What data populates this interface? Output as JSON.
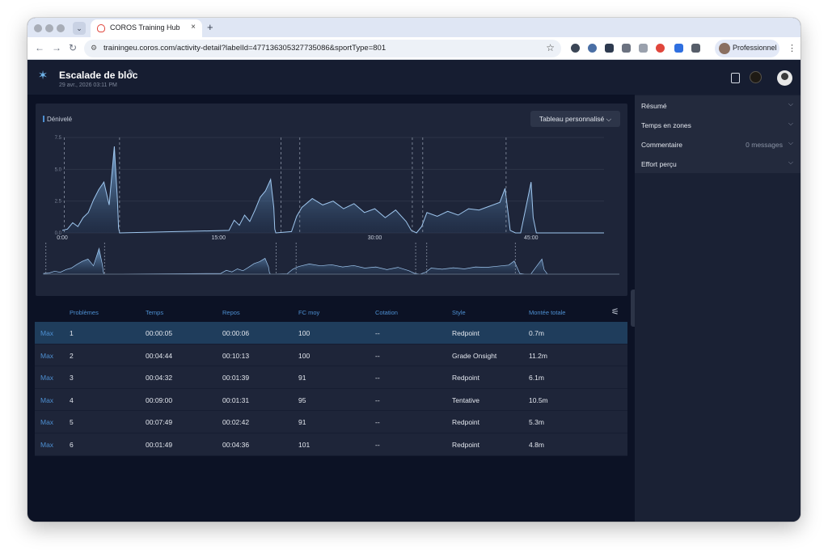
{
  "browser": {
    "tab_title": "COROS Training Hub",
    "url": "trainingeu.coros.com/activity-detail?labelId=477136305327735086&sportType=801",
    "profile_label": "Professionnel",
    "new_tab_glyph": "+",
    "close_tab_glyph": "×"
  },
  "header": {
    "title": "Escalade de bloc",
    "date": "29 avr., 2026 03:11 PM"
  },
  "chart": {
    "metric_label": "Dénivelé",
    "table_button_label": "Tableau personnalisé ⌵"
  },
  "chart_data": {
    "type": "area",
    "y_ticks": [
      "7.5",
      "5.0",
      "2.5",
      "0.0"
    ],
    "x_ticks": [
      "0:00",
      "15:00",
      "30:00",
      "45:00"
    ],
    "ylim": [
      0,
      7.5
    ],
    "xlim": [
      0,
      52
    ],
    "x": [
      0,
      0.5,
      1,
      1.5,
      2,
      2.5,
      3,
      3.5,
      4,
      4.5,
      5,
      5.3,
      5.4,
      5.5,
      16,
      16.5,
      17,
      17.5,
      18,
      18.5,
      19,
      19.5,
      20,
      20.3,
      20.4,
      20.5,
      22,
      22.5,
      23,
      24,
      25,
      26,
      27,
      28,
      29,
      30,
      31,
      32,
      33,
      33.5,
      34,
      34.5,
      35,
      36,
      37,
      38,
      39,
      40,
      41,
      42,
      42.5,
      43,
      43.5,
      44,
      44.5,
      45,
      45.2,
      45.5,
      46,
      52
    ],
    "y": [
      0.2,
      0.3,
      0.8,
      0.5,
      1.2,
      1.6,
      2.6,
      3.4,
      4.0,
      2.2,
      6.8,
      2.5,
      0.4,
      0.0,
      0.2,
      1.0,
      0.6,
      1.4,
      0.9,
      1.8,
      2.8,
      3.3,
      4.2,
      2.0,
      0.3,
      0.0,
      0.1,
      1.3,
      2.0,
      2.7,
      2.2,
      2.5,
      1.9,
      2.3,
      1.6,
      1.9,
      1.2,
      1.8,
      0.9,
      0.2,
      0.0,
      0.5,
      1.6,
      1.3,
      1.7,
      1.4,
      1.9,
      1.8,
      2.1,
      2.4,
      3.5,
      0.2,
      0.0,
      0.0,
      2.0,
      4.0,
      1.2,
      0.0,
      0.0,
      0.0
    ],
    "segment_markers": [
      0.2,
      5.5,
      21.0,
      22.8,
      33.6,
      34.6,
      42.6
    ],
    "grid": true,
    "legend": "none"
  },
  "table": {
    "columns": [
      "Problèmes",
      "Temps",
      "Repos",
      "FC moy",
      "Cotation",
      "Style",
      "Montée totale"
    ],
    "rows": [
      {
        "max": "Max",
        "num": "1",
        "temps": "00:00:05",
        "repos": "00:00:06",
        "fc": "100",
        "cot": "--",
        "style": "Redpoint",
        "montee": "0.7m"
      },
      {
        "max": "Max",
        "num": "2",
        "temps": "00:04:44",
        "repos": "00:10:13",
        "fc": "100",
        "cot": "--",
        "style": "Grade Onsight",
        "montee": "11.2m"
      },
      {
        "max": "Max",
        "num": "3",
        "temps": "00:04:32",
        "repos": "00:01:39",
        "fc": "91",
        "cot": "--",
        "style": "Redpoint",
        "montee": "6.1m"
      },
      {
        "max": "Max",
        "num": "4",
        "temps": "00:09:00",
        "repos": "00:01:31",
        "fc": "95",
        "cot": "--",
        "style": "Tentative",
        "montee": "10.5m"
      },
      {
        "max": "Max",
        "num": "5",
        "temps": "00:07:49",
        "repos": "00:02:42",
        "fc": "91",
        "cot": "--",
        "style": "Redpoint",
        "montee": "5.3m"
      },
      {
        "max": "Max",
        "num": "6",
        "temps": "00:01:49",
        "repos": "00:04:36",
        "fc": "101",
        "cot": "--",
        "style": "Redpoint",
        "montee": "4.8m"
      }
    ]
  },
  "sidebar": {
    "sections": [
      {
        "label": "Résumé",
        "extra": ""
      },
      {
        "label": "Temps en zones",
        "extra": ""
      },
      {
        "label": "Commentaire",
        "extra": "0 messages"
      },
      {
        "label": "Effort perçu",
        "extra": ""
      }
    ]
  },
  "colors": {
    "accent": "#4d8fd1",
    "background": "#0c1225",
    "panel": "#1e2539",
    "selected_row": "#1f3d5c"
  }
}
